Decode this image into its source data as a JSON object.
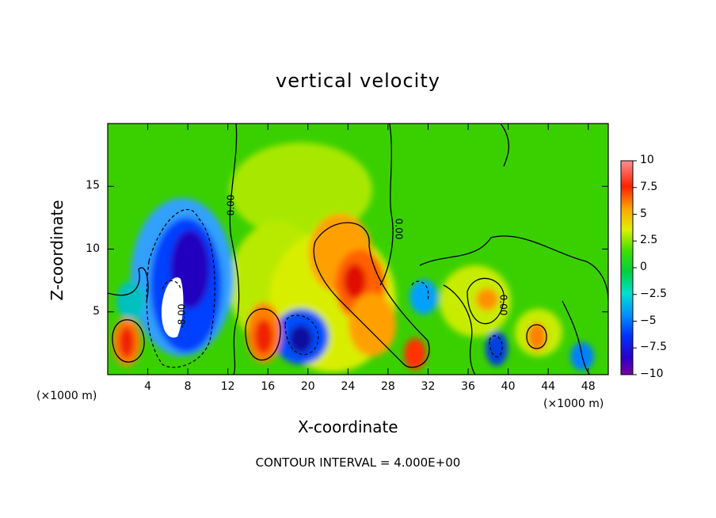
{
  "chart_data": {
    "type": "heatmap",
    "title": "vertical velocity",
    "xlabel": "X-coordinate",
    "ylabel": "Z-coordinate",
    "x_unit_label": "(×1000 m)",
    "xlim": [
      0,
      50
    ],
    "ylim": [
      0,
      20
    ],
    "x_ticks": [
      "4",
      "8",
      "12",
      "16",
      "20",
      "24",
      "28",
      "32",
      "36",
      "40",
      "44",
      "48"
    ],
    "y_ticks": [
      "5",
      "10",
      "15"
    ],
    "colorbar": {
      "ticks": [
        "10",
        "7.5",
        "5",
        "2.5",
        "0",
        "−2.5",
        "−5",
        "−7.5",
        "−10"
      ],
      "range": [
        -10,
        10
      ]
    },
    "contour_labels": [
      "0.00",
      "0.00",
      "0.00",
      "-8.00"
    ],
    "contour_interval_text": "CONTOUR INTERVAL =  4.000E+00",
    "features": [
      {
        "x": 2.0,
        "z": 2.5,
        "w": 7.5
      },
      {
        "x": 6.5,
        "z": 5.5,
        "w": -10
      },
      {
        "x": 8.5,
        "z": 8.0,
        "w": -7.5
      },
      {
        "x": 15.5,
        "z": 3.5,
        "w": 7.5
      },
      {
        "x": 19.0,
        "z": 3.0,
        "w": -7.5
      },
      {
        "x": 24.0,
        "z": 7.5,
        "w": 8.0
      },
      {
        "x": 25.0,
        "z": 3.5,
        "w": 5.0
      },
      {
        "x": 30.5,
        "z": 2.0,
        "w": 7.5
      },
      {
        "x": 38.0,
        "z": 6.0,
        "w": 5.0
      },
      {
        "x": 38.5,
        "z": 2.0,
        "w": -7.5
      },
      {
        "x": 42.5,
        "z": 3.0,
        "w": 5.0
      },
      {
        "x": 47.0,
        "z": 1.5,
        "w": -5.0
      }
    ]
  }
}
